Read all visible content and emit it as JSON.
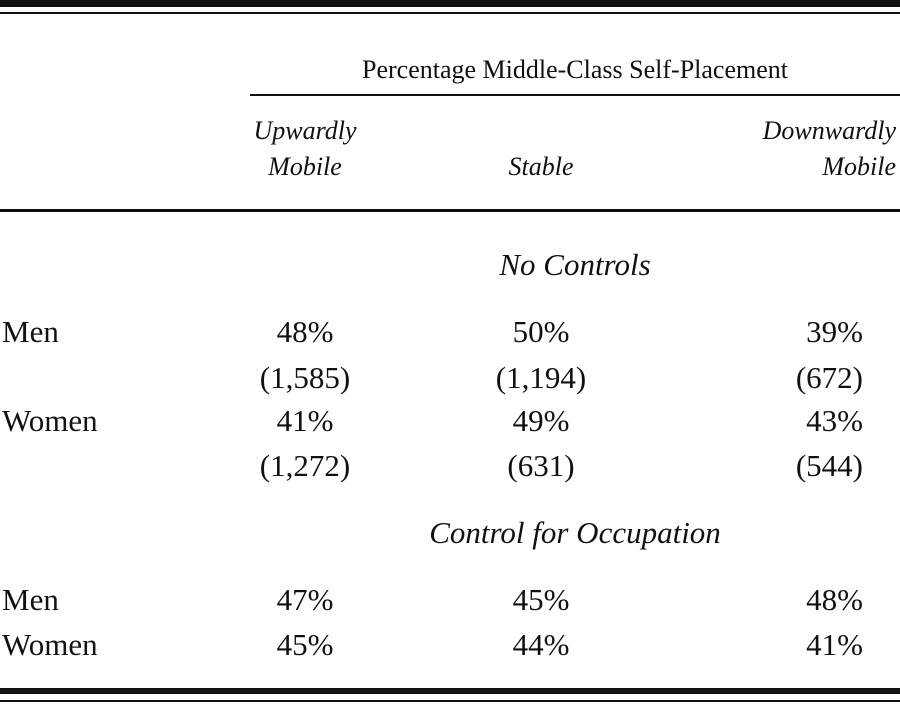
{
  "table": {
    "caption": "Percentage Middle-Class Self-Placement",
    "columns": [
      {
        "line1": "Upwardly",
        "line2": "Mobile"
      },
      {
        "line1": "",
        "line2": "Stable"
      },
      {
        "line1": "Downwardly",
        "line2": "Mobile"
      }
    ],
    "sections": [
      {
        "title": "No Controls",
        "rows": [
          {
            "label": "Men",
            "values": [
              "48%",
              "50%",
              "39%"
            ],
            "counts": [
              "(1,585)",
              "(1,194)",
              "(672)"
            ]
          },
          {
            "label": "Women",
            "values": [
              "41%",
              "49%",
              "43%"
            ],
            "counts": [
              "(1,272)",
              "(631)",
              "(544)"
            ]
          }
        ]
      },
      {
        "title": "Control for Occupation",
        "rows": [
          {
            "label": "Men",
            "values": [
              "47%",
              "45%",
              "48%"
            ]
          },
          {
            "label": "Women",
            "values": [
              "45%",
              "44%",
              "41%"
            ]
          }
        ]
      }
    ]
  }
}
